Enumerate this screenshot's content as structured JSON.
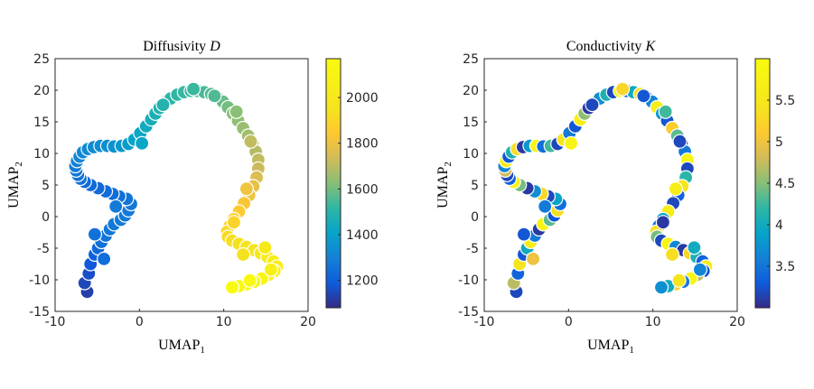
{
  "chart_data": [
    {
      "type": "scatter",
      "title": "Diffusivity",
      "title_var": "D",
      "xlabel": "UMAP",
      "xlabel_sub": "1",
      "ylabel": "UMAP",
      "ylabel_sub": "2",
      "xlim": [
        -10,
        20
      ],
      "ylim": [
        -15,
        25
      ],
      "xticks": [
        "-10",
        "0",
        "10",
        "20"
      ],
      "yticks": [
        "-15",
        "-10",
        "-5",
        "0",
        "5",
        "10",
        "15",
        "20",
        "25"
      ],
      "colormap": "parula",
      "color_range": [
        1080,
        2170
      ],
      "colorbar_ticks": [
        "1200",
        "1400",
        "1600",
        "1800",
        "2000"
      ],
      "colorbar_tick_values": [
        1200,
        1400,
        1600,
        1800,
        2000
      ],
      "grid": false
    },
    {
      "type": "scatter",
      "title": "Conductivity",
      "title_var": "K",
      "xlabel": "UMAP",
      "xlabel_sub": "1",
      "ylabel": "UMAP",
      "ylabel_sub": "2",
      "xlim": [
        -10,
        20
      ],
      "ylim": [
        -15,
        25
      ],
      "xticks": [
        "-10",
        "0",
        "10",
        "20"
      ],
      "yticks": [
        "-15",
        "-10",
        "-5",
        "0",
        "5",
        "10",
        "15",
        "20",
        "25"
      ],
      "colormap": "parula",
      "color_range": [
        3.0,
        6.0
      ],
      "colorbar_ticks": [
        "3.5",
        "4",
        "4.5",
        "5",
        "5.5"
      ],
      "colorbar_tick_values": [
        3.5,
        4,
        4.5,
        5,
        5.5
      ],
      "grid": false
    }
  ],
  "points": {
    "x": [
      -6.2,
      -6.5,
      -6.0,
      -5.8,
      -5.3,
      -4.9,
      -4.5,
      -4.0,
      -3.5,
      -3.0,
      -2.2,
      -1.7,
      -1.3,
      -1.0,
      -1.5,
      -2.4,
      -3.2,
      -4.0,
      -4.9,
      -5.8,
      -6.5,
      -7.0,
      -7.3,
      -7.5,
      -7.6,
      -7.4,
      -7.1,
      -6.7,
      -6.1,
      -5.4,
      -4.6,
      -3.8,
      -3.0,
      -2.1,
      -1.3,
      -0.6,
      0.1,
      0.8,
      1.4,
      1.9,
      2.4,
      3.0,
      3.7,
      4.5,
      5.3,
      6.1,
      6.9,
      7.7,
      8.5,
      9.2,
      9.9,
      10.5,
      11.1,
      11.7,
      12.3,
      12.9,
      13.4,
      13.8,
      14.1,
      14.1,
      13.9,
      13.5,
      13.0,
      12.4,
      11.8,
      11.2,
      10.7,
      10.4,
      10.5,
      11.0,
      11.8,
      12.7,
      13.6,
      14.4,
      15.2,
      15.9,
      16.3,
      16.0,
      15.3,
      14.5,
      13.6,
      12.7,
      11.8,
      11.0,
      -5.3,
      -4.2,
      -2.8,
      0.3,
      2.8,
      6.4,
      8.9,
      11.5,
      13.2,
      12.7,
      11.2,
      12.3,
      14.9,
      15.6,
      13.1
    ],
    "y": [
      -11.9,
      -10.5,
      -9.0,
      -7.5,
      -6.0,
      -5.0,
      -4.0,
      -3.0,
      -2.0,
      -1.2,
      -0.5,
      0.2,
      1.0,
      2.0,
      2.8,
      3.2,
      3.6,
      4.0,
      4.5,
      5.0,
      5.5,
      6.0,
      6.6,
      7.3,
      8.0,
      8.8,
      9.5,
      10.2,
      10.7,
      11.0,
      11.2,
      11.2,
      11.1,
      11.2,
      11.5,
      12.2,
      13.2,
      14.3,
      15.4,
      16.3,
      17.2,
      18.0,
      18.7,
      19.3,
      19.7,
      19.9,
      19.9,
      19.7,
      19.4,
      18.9,
      18.2,
      17.3,
      16.3,
      15.2,
      14.0,
      12.8,
      11.6,
      10.3,
      9.0,
      7.6,
      6.2,
      4.8,
      3.4,
      2.1,
      0.8,
      -0.4,
      -1.5,
      -2.4,
      -3.2,
      -3.8,
      -4.3,
      -4.8,
      -5.3,
      -5.8,
      -6.4,
      -7.1,
      -7.9,
      -8.6,
      -9.2,
      -9.8,
      -10.3,
      -10.7,
      -11.0,
      -11.2,
      -2.8,
      -6.7,
      1.6,
      11.6,
      17.7,
      20.2,
      19.1,
      16.6,
      11.9,
      4.4,
      -0.9,
      -6.0,
      -4.9,
      -8.4,
      -10.1
    ],
    "D": [
      1130,
      1150,
      1170,
      1195,
      1220,
      1245,
      1265,
      1280,
      1290,
      1295,
      1300,
      1300,
      1295,
      1290,
      1280,
      1270,
      1260,
      1250,
      1245,
      1245,
      1250,
      1260,
      1275,
      1290,
      1305,
      1320,
      1335,
      1345,
      1355,
      1360,
      1365,
      1370,
      1380,
      1400,
      1420,
      1440,
      1460,
      1480,
      1500,
      1515,
      1530,
      1545,
      1555,
      1565,
      1575,
      1580,
      1590,
      1600,
      1615,
      1630,
      1645,
      1660,
      1680,
      1700,
      1715,
      1730,
      1745,
      1760,
      1780,
      1800,
      1830,
      1860,
      1890,
      1915,
      1940,
      1960,
      1980,
      1995,
      2010,
      2025,
      2040,
      2050,
      2060,
      2070,
      2085,
      2100,
      2110,
      2120,
      2130,
      2140,
      2150,
      2155,
      2160,
      2165,
      1270,
      1260,
      1300,
      1455,
      1535,
      1580,
      1610,
      1690,
      1780,
      1890,
      1975,
      2045,
      2080,
      2115,
      2160
    ],
    "K": [
      3.2,
      4.9,
      3.4,
      5.7,
      3.3,
      4.1,
      5.8,
      3.6,
      3.1,
      5.9,
      4.5,
      3.3,
      5.6,
      3.5,
      4.0,
      3.2,
      5.5,
      3.8,
      3.1,
      4.6,
      5.9,
      3.4,
      3.2,
      5.0,
      3.7,
      5.8,
      3.3,
      4.2,
      5.6,
      3.1,
      3.9,
      5.9,
      3.5,
      4.4,
      3.2,
      5.7,
      3.6,
      3.3,
      5.8,
      4.7,
      3.1,
      5.5,
      3.8,
      4.2,
      3.2,
      5.9,
      3.4,
      4.1,
      5.6,
      3.2,
      3.7,
      5.8,
      3.9,
      3.3,
      5.4,
      4.5,
      3.1,
      3.6,
      5.9,
      3.2,
      4.3,
      5.7,
      3.4,
      3.2,
      5.8,
      4.0,
      3.5,
      5.6,
      4.6,
      3.2,
      5.9,
      3.7,
      3.1,
      5.5,
      4.2,
      3.4,
      5.8,
      3.3,
      4.9,
      5.9,
      3.6,
      5.4,
      4.1,
      3.8,
      3.3,
      5.2,
      3.6,
      5.9,
      3.2,
      5.5,
      3.3,
      4.4,
      3.2,
      5.8,
      3.1,
      5.6,
      4.1,
      3.7,
      5.7
    ]
  }
}
